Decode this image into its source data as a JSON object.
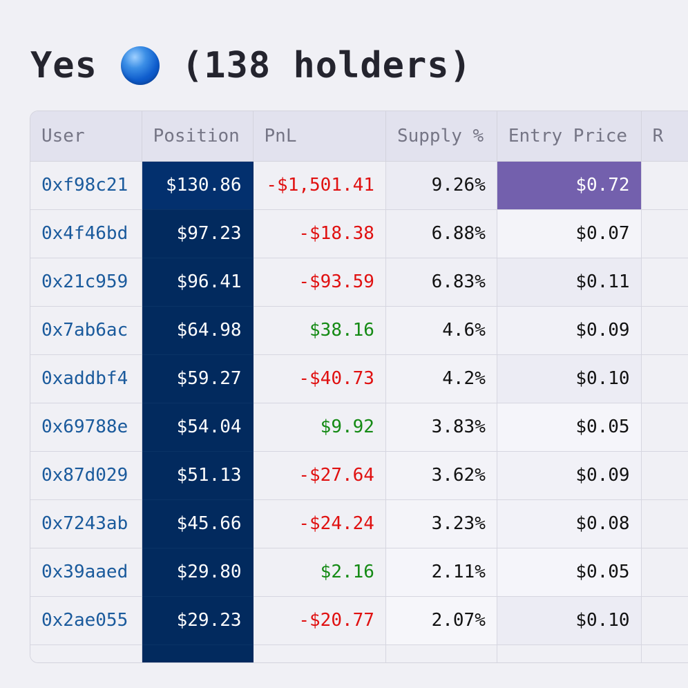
{
  "header": {
    "title_prefix": "Yes",
    "title_suffix": "(138 holders)"
  },
  "table": {
    "columns": [
      "User",
      "Position",
      "PnL",
      "Supply %",
      "Entry Price",
      "R"
    ],
    "rows": [
      {
        "user": "0xf98c21",
        "position": "$130.86",
        "pnl": "-$1,501.41",
        "pnl_sign": "neg",
        "supply": "9.26%",
        "entry": "$0.72",
        "supply_shade": "#ebebf3",
        "entry_shade": "#7360ad"
      },
      {
        "user": "0x4f46bd",
        "position": "$97.23",
        "pnl": "-$18.38",
        "pnl_sign": "neg",
        "supply": "6.88%",
        "entry": "$0.07",
        "supply_shade": "#efeff5",
        "entry_shade": "#f4f4f9"
      },
      {
        "user": "0x21c959",
        "position": "$96.41",
        "pnl": "-$93.59",
        "pnl_sign": "neg",
        "supply": "6.83%",
        "entry": "$0.11",
        "supply_shade": "#efeff5",
        "entry_shade": "#ebebf3"
      },
      {
        "user": "0x7ab6ac",
        "position": "$64.98",
        "pnl": "$38.16",
        "pnl_sign": "pos",
        "supply": "4.6%",
        "entry": "$0.09",
        "supply_shade": "#f2f2f7",
        "entry_shade": "#f1f1f7"
      },
      {
        "user": "0xaddbf4",
        "position": "$59.27",
        "pnl": "-$40.73",
        "pnl_sign": "neg",
        "supply": "4.2%",
        "entry": "$0.10",
        "supply_shade": "#f2f2f7",
        "entry_shade": "#ececf4"
      },
      {
        "user": "0x69788e",
        "position": "$54.04",
        "pnl": "$9.92",
        "pnl_sign": "pos",
        "supply": "3.83%",
        "entry": "$0.05",
        "supply_shade": "#f3f3f8",
        "entry_shade": "#f5f5fa"
      },
      {
        "user": "0x87d029",
        "position": "$51.13",
        "pnl": "-$27.64",
        "pnl_sign": "neg",
        "supply": "3.62%",
        "entry": "$0.09",
        "supply_shade": "#f3f3f8",
        "entry_shade": "#f1f1f7"
      },
      {
        "user": "0x7243ab",
        "position": "$45.66",
        "pnl": "-$24.24",
        "pnl_sign": "neg",
        "supply": "3.23%",
        "entry": "$0.08",
        "supply_shade": "#f4f4f9",
        "entry_shade": "#f2f2f8"
      },
      {
        "user": "0x39aaed",
        "position": "$29.80",
        "pnl": "$2.16",
        "pnl_sign": "pos",
        "supply": "2.11%",
        "entry": "$0.05",
        "supply_shade": "#f5f5fa",
        "entry_shade": "#f5f5fa"
      },
      {
        "user": "0x2ae055",
        "position": "$29.23",
        "pnl": "-$20.77",
        "pnl_sign": "neg",
        "supply": "2.07%",
        "entry": "$0.10",
        "supply_shade": "#f6f6fa",
        "entry_shade": "#ececf4"
      }
    ]
  },
  "colors": {
    "position_fill": "#022a5e",
    "negative_pnl": "#e01010",
    "positive_pnl": "#148a14",
    "user_link": "#1a5a9c",
    "entry_highlight": "#7360ad"
  }
}
